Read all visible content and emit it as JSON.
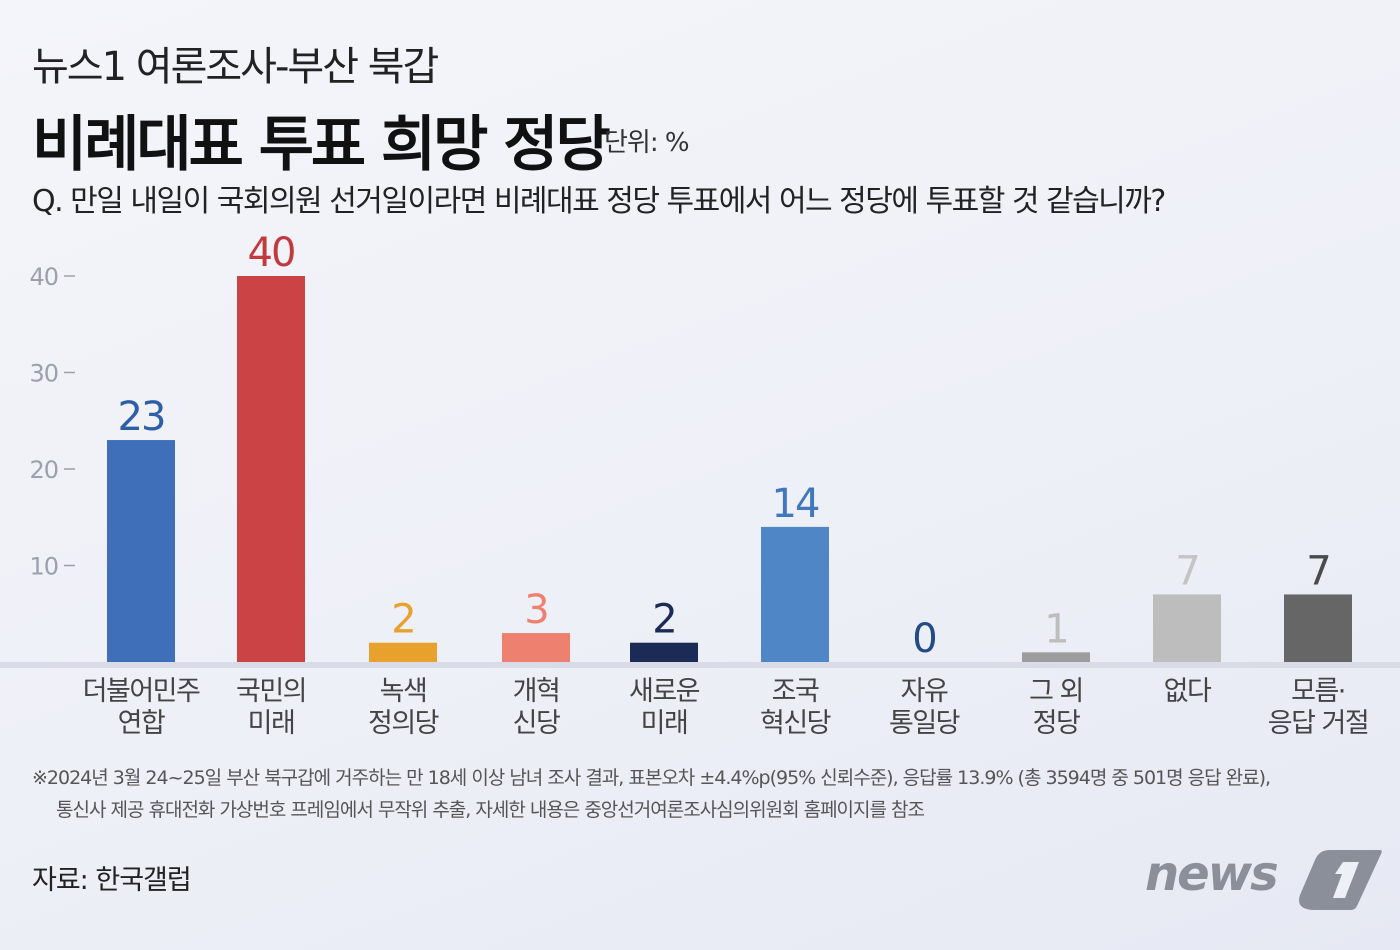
{
  "header": {
    "supertitle": "뉴스1 여론조사-부산 북갑",
    "title": "비례대표 투표 희망 정당",
    "unit": "단위: %",
    "question": "Q. 만일 내일이 국회의원 선거일이라면 비례대표 정당 투표에서 어느 정당에 투표할 것 같습니까?"
  },
  "chart_data": {
    "type": "bar",
    "categories": [
      [
        "더불어민주",
        "연합"
      ],
      [
        "국민의",
        "미래"
      ],
      [
        "녹색",
        "정의당"
      ],
      [
        "개혁",
        "신당"
      ],
      [
        "새로운",
        "미래"
      ],
      [
        "조국",
        "혁신당"
      ],
      [
        "자유",
        "통일당"
      ],
      [
        "그 외",
        "정당"
      ],
      [
        "없다"
      ],
      [
        "모름·",
        "응답 거절"
      ]
    ],
    "values": [
      23,
      40,
      2,
      3,
      2,
      14,
      0,
      1,
      7,
      7
    ],
    "bar_colors": [
      "#3f6fb8",
      "#cc4346",
      "#e9a12e",
      "#ee8070",
      "#1c2a56",
      "#4f86c6",
      "#2a4f8a",
      "#9c9c9c",
      "#bdbdbd",
      "#666666"
    ],
    "label_colors": [
      "#2d5fa8",
      "#c13b3e",
      "#e9a12e",
      "#ee8070",
      "#1c2a56",
      "#3f78bc",
      "#234a86",
      "#bdbdbd",
      "#c4c4c4",
      "#4a4a4a"
    ],
    "yticks": [
      "10",
      "20",
      "30",
      "40"
    ],
    "ylim": [
      0,
      40
    ],
    "grid": false
  },
  "footnote": {
    "line1": "※2024년 3월 24~25일 부산 북구갑에 거주하는 만 18세 이상 남녀 조사 결과, 표본오차 ±4.4%p(95% 신뢰수준), 응답률 13.9% (총 3594명 중 501명 응답 완료),",
    "line2": "통신사 제공 휴대전화 가상번호 프레임에서 무작위 추출, 자세한 내용은 중앙선거여론조사심의위원회 홈페이지를 참조"
  },
  "source": "자료: 한국갤럽",
  "logo": "news1"
}
